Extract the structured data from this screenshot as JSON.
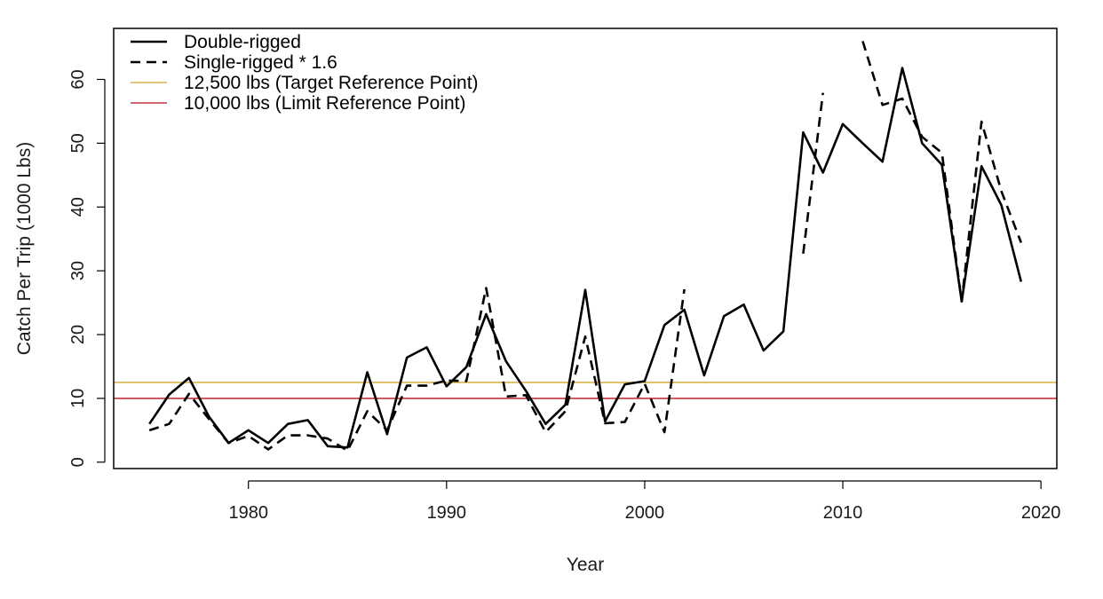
{
  "chart_data": {
    "type": "line",
    "title": "",
    "xlabel": "Year",
    "ylabel": "Catch Per Trip (1000 Lbs)",
    "xlim": [
      1973.2,
      2020.8
    ],
    "ylim": [
      -1,
      68
    ],
    "x_ticks": [
      1980,
      1990,
      2000,
      2010,
      2020
    ],
    "y_ticks": [
      0,
      10,
      20,
      30,
      40,
      50,
      60
    ],
    "grid": false,
    "legend_position": "top-left",
    "series": [
      {
        "name": "Double-rigged",
        "style": "solid",
        "color": "#000000",
        "x": [
          1975,
          1976,
          1977,
          1978,
          1979,
          1980,
          1981,
          1982,
          1983,
          1984,
          1985,
          1986,
          1987,
          1988,
          1989,
          1990,
          1991,
          1992,
          1993,
          1994,
          1995,
          1996,
          1997,
          1998,
          1999,
          2000,
          2001,
          2002,
          2003,
          2004,
          2005,
          2006,
          2007,
          2008,
          2009,
          2010,
          2011,
          2012,
          2013,
          2014,
          2015,
          2016,
          2017,
          2018,
          2019
        ],
        "y": [
          6.0,
          10.6,
          13.2,
          7.2,
          3.0,
          5.0,
          3.0,
          6.0,
          6.6,
          2.5,
          2.3,
          14.1,
          4.4,
          16.4,
          18.0,
          11.9,
          14.9,
          23.2,
          15.8,
          11.2,
          6.0,
          9.0,
          27.0,
          6.4,
          12.2,
          12.7,
          21.5,
          23.9,
          13.6,
          22.9,
          24.7,
          17.5,
          20.5,
          51.7,
          45.4,
          53.0,
          50.0,
          47.1,
          61.8,
          50.0,
          46.6,
          25.2,
          46.4,
          40.3,
          28.3
        ]
      },
      {
        "name": "Single-rigged * 1.6",
        "style": "dashed",
        "color": "#000000",
        "x": [
          1975,
          1976,
          1977,
          1978,
          1979,
          1980,
          1981,
          1982,
          1983,
          1984,
          1985,
          1986,
          1987,
          1988,
          1989,
          1990,
          1991,
          1992,
          1993,
          1994,
          1995,
          1996,
          1997,
          1998,
          1999,
          2000,
          2001,
          2002,
          2003,
          2004,
          2005,
          2006,
          2007,
          2008,
          2009,
          2010,
          2011,
          2012,
          2013,
          2014,
          2015,
          2016,
          2017,
          2018,
          2019
        ],
        "y": [
          5.0,
          6.0,
          10.7,
          6.8,
          3.0,
          4.1,
          2.0,
          4.2,
          4.2,
          3.7,
          1.8,
          8.0,
          5.0,
          12.0,
          12.0,
          12.8,
          12.7,
          27.3,
          10.3,
          10.5,
          4.7,
          8.0,
          19.7,
          6.1,
          6.3,
          12.3,
          4.7,
          27.1,
          null,
          null,
          null,
          null,
          null,
          32.7,
          57.9,
          null,
          66.0,
          56.0,
          57.0,
          51.0,
          48.5,
          25.2,
          53.4,
          42.5,
          34.4
        ]
      }
    ],
    "reference_lines": [
      {
        "name": "12,500 lbs (Target Reference Point)",
        "y": 12.5,
        "color": "#DAB34A"
      },
      {
        "name": "10,000 lbs (Limit Reference Point)",
        "y": 10.0,
        "color": "#C4333D"
      }
    ]
  }
}
